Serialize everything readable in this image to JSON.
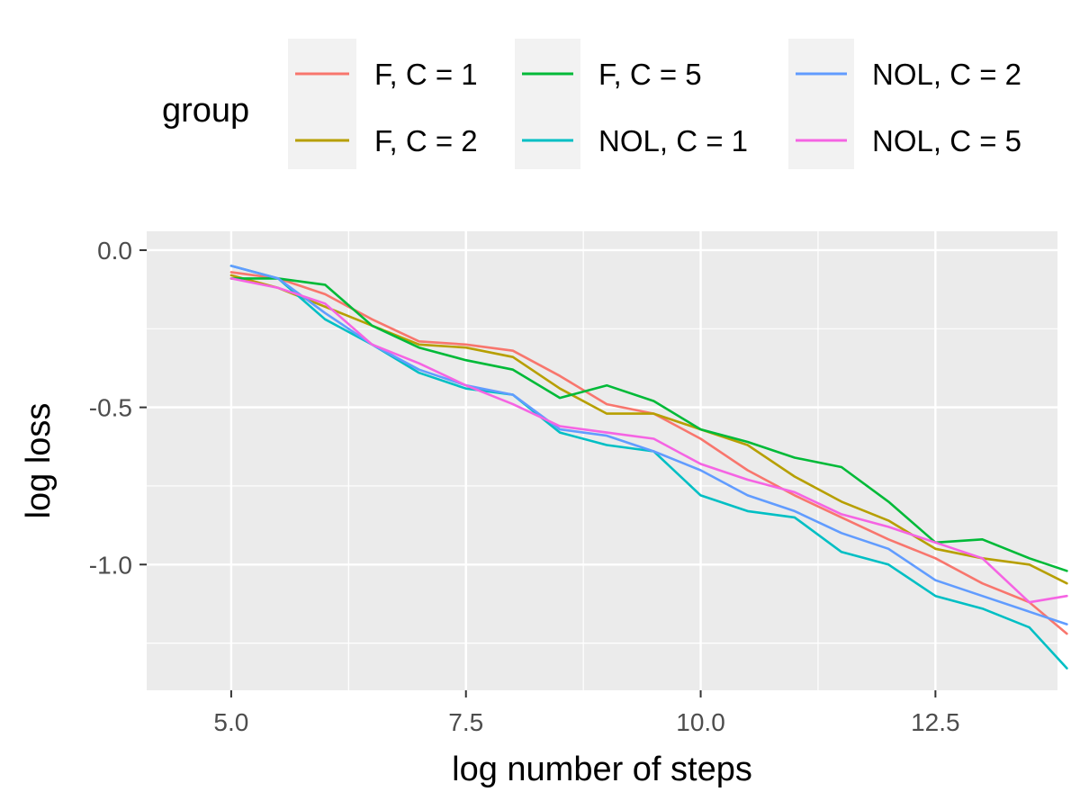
{
  "chart_data": {
    "type": "line",
    "title": "",
    "xlabel": "log number of steps",
    "ylabel": "log loss",
    "xlim": [
      4.1,
      13.8
    ],
    "ylim": [
      -1.4,
      0.06
    ],
    "xticks": [
      5.0,
      7.5,
      10.0,
      12.5
    ],
    "xtick_labels": [
      "5.0",
      "7.5",
      "10.0",
      "12.5"
    ],
    "yticks": [
      0.0,
      -0.5,
      -1.0
    ],
    "ytick_labels": [
      "0.0",
      "-0.5",
      "-1.0"
    ],
    "grid": true,
    "legend": {
      "title": "group",
      "position": "top"
    },
    "series": [
      {
        "name": "F, C = 1",
        "color": "#F8766D",
        "x": [
          5.0,
          5.5,
          6.0,
          6.5,
          7.0,
          7.5,
          8.0,
          8.5,
          9.0,
          9.5,
          10.0,
          10.5,
          11.0,
          11.5,
          12.0,
          12.5,
          13.0,
          13.5,
          13.9
        ],
        "y": [
          -0.07,
          -0.09,
          -0.14,
          -0.22,
          -0.29,
          -0.3,
          -0.32,
          -0.4,
          -0.49,
          -0.52,
          -0.6,
          -0.7,
          -0.78,
          -0.85,
          -0.92,
          -0.98,
          -1.06,
          -1.12,
          -1.22
        ]
      },
      {
        "name": "F, C = 2",
        "color": "#B79F00",
        "x": [
          5.0,
          5.5,
          6.0,
          6.5,
          7.0,
          7.5,
          8.0,
          8.5,
          9.0,
          9.5,
          10.0,
          10.5,
          11.0,
          11.5,
          12.0,
          12.5,
          13.0,
          13.5,
          13.9
        ],
        "y": [
          -0.08,
          -0.12,
          -0.18,
          -0.24,
          -0.3,
          -0.31,
          -0.34,
          -0.44,
          -0.52,
          -0.52,
          -0.57,
          -0.62,
          -0.72,
          -0.8,
          -0.86,
          -0.95,
          -0.98,
          -1.0,
          -1.06
        ]
      },
      {
        "name": "F, C = 5",
        "color": "#00BA38",
        "x": [
          5.0,
          5.5,
          6.0,
          6.5,
          7.0,
          7.5,
          8.0,
          8.5,
          9.0,
          9.5,
          10.0,
          10.5,
          11.0,
          11.5,
          12.0,
          12.5,
          13.0,
          13.5,
          13.9
        ],
        "y": [
          -0.09,
          -0.09,
          -0.11,
          -0.24,
          -0.31,
          -0.35,
          -0.38,
          -0.47,
          -0.43,
          -0.48,
          -0.57,
          -0.61,
          -0.66,
          -0.69,
          -0.8,
          -0.93,
          -0.92,
          -0.98,
          -1.02
        ]
      },
      {
        "name": "NOL, C = 1",
        "color": "#00BFC4",
        "x": [
          5.0,
          5.5,
          6.0,
          6.5,
          7.0,
          7.5,
          8.0,
          8.5,
          9.0,
          9.5,
          10.0,
          10.5,
          11.0,
          11.5,
          12.0,
          12.5,
          13.0,
          13.5,
          13.9
        ],
        "y": [
          -0.05,
          -0.09,
          -0.22,
          -0.3,
          -0.39,
          -0.44,
          -0.46,
          -0.58,
          -0.62,
          -0.64,
          -0.78,
          -0.83,
          -0.85,
          -0.96,
          -1.0,
          -1.1,
          -1.14,
          -1.2,
          -1.33
        ]
      },
      {
        "name": "NOL, C = 2",
        "color": "#619CFF",
        "x": [
          5.0,
          5.5,
          6.0,
          6.5,
          7.0,
          7.5,
          8.0,
          8.5,
          9.0,
          9.5,
          10.0,
          10.5,
          11.0,
          11.5,
          12.0,
          12.5,
          13.0,
          13.5,
          13.9
        ],
        "y": [
          -0.05,
          -0.09,
          -0.2,
          -0.3,
          -0.38,
          -0.43,
          -0.46,
          -0.57,
          -0.59,
          -0.64,
          -0.7,
          -0.78,
          -0.83,
          -0.9,
          -0.95,
          -1.05,
          -1.1,
          -1.15,
          -1.19
        ]
      },
      {
        "name": "NOL, C = 5",
        "color": "#F564E3",
        "x": [
          5.0,
          5.5,
          6.0,
          6.5,
          7.0,
          7.5,
          8.0,
          8.5,
          9.0,
          9.5,
          10.0,
          10.5,
          11.0,
          11.5,
          12.0,
          12.5,
          13.0,
          13.5,
          13.9
        ],
        "y": [
          -0.09,
          -0.12,
          -0.17,
          -0.3,
          -0.36,
          -0.43,
          -0.49,
          -0.56,
          -0.58,
          -0.6,
          -0.68,
          -0.73,
          -0.77,
          -0.84,
          -0.88,
          -0.93,
          -0.98,
          -1.12,
          -1.1
        ]
      }
    ]
  }
}
